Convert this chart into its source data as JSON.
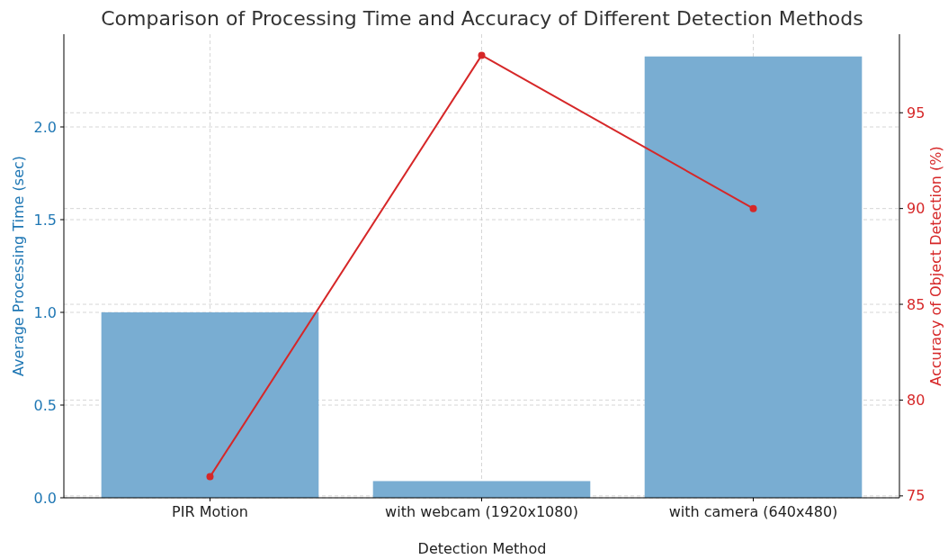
{
  "chart_data": {
    "type": "bar",
    "title": "Comparison of Processing Time and Accuracy of Different Detection Methods",
    "xlabel": "Detection Method",
    "ylabel": "Average Processing Time (sec)",
    "y2label": "Accuracy of Object Detection (%)",
    "categories": [
      "PIR Motion",
      "with webcam (1920x1080)",
      "with camera (640x480)"
    ],
    "series": [
      {
        "color": "#79add2",
        "values": [
          1.0,
          0.09,
          2.38
        ]
      },
      {
        "type": "line",
        "axis": "y2",
        "color": "#d62728",
        "values": [
          76,
          98,
          90
        ]
      }
    ],
    "ylim": [
      0,
      2.5
    ],
    "yticks": [
      {
        "value": 0,
        "label": "0.0"
      },
      {
        "value": 0.5,
        "label": "0.5"
      },
      {
        "value": 1,
        "label": "1.0"
      },
      {
        "value": 1.5,
        "label": "1.5"
      },
      {
        "value": 2,
        "label": "2.0"
      }
    ],
    "y2lim": [
      74.9,
      99.1
    ],
    "y2ticks": [
      75,
      80,
      85,
      90,
      95
    ],
    "grid": true,
    "marker": "circle",
    "line_style": "solid"
  }
}
